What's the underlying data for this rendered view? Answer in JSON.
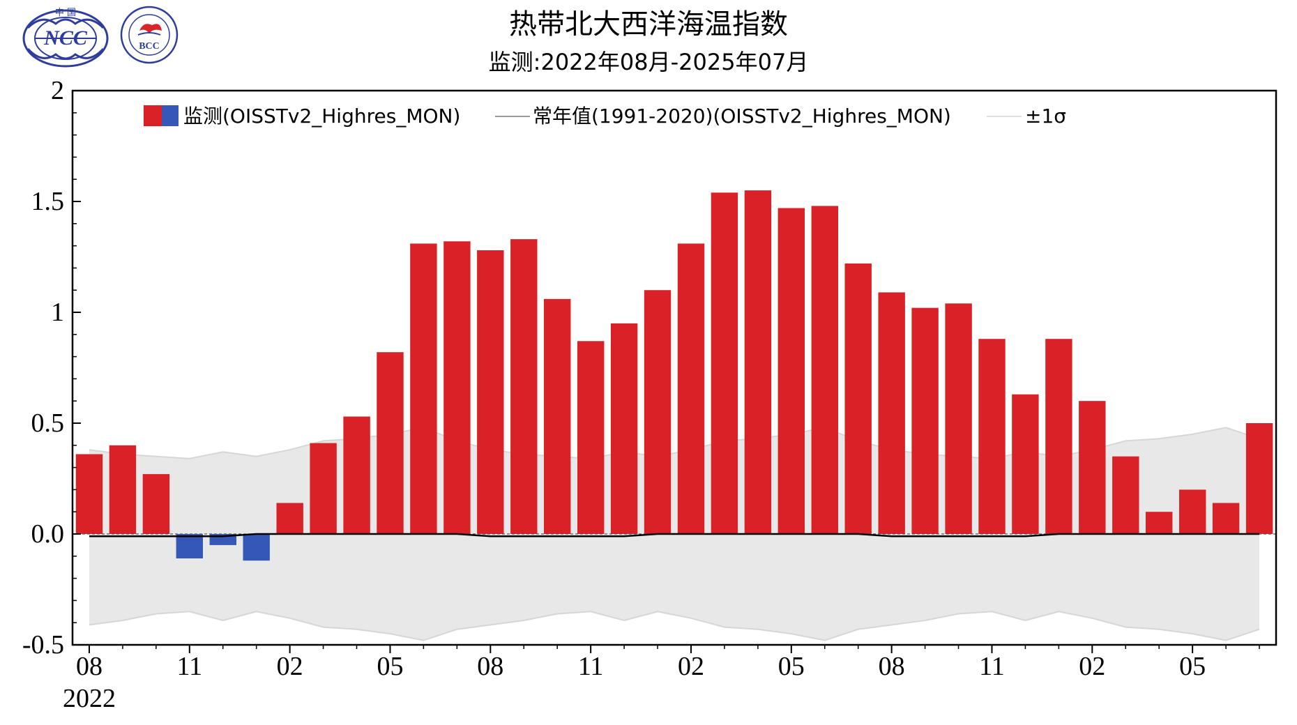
{
  "header": {
    "title": "热带北大西洋海温指数",
    "subtitle": "监测:2022年08月-2025年07月",
    "logo_left_text": "NCC",
    "logo_left_top_text": "中 国",
    "logo_right_text": "BCC",
    "logo_right_ring_text": "BEIJING CLIMATE CENTER"
  },
  "legend": {
    "position": "top",
    "entries": [
      {
        "label": "监测(OISSTv2_Highres_MON)",
        "colors": [
          "#DA2128",
          "#3557B8"
        ]
      },
      {
        "label": "常年值(1991-2020)(OISSTv2_Highres_MON)",
        "color": "#999999"
      },
      {
        "label": "±1σ",
        "color": "#E0E0E0"
      }
    ]
  },
  "colors": {
    "positive": "#DA2128",
    "negative": "#3557B8",
    "band_fill": "#E8E8E8",
    "band_edge": "#D6D6D6",
    "climatology_line": "#000000"
  },
  "chart_data": {
    "type": "bar",
    "title": "热带北大西洋海温指数",
    "subtitle": "监测:2022年08月-2025年07月",
    "xlabel": "",
    "ylabel": "",
    "ylim": [
      -0.5,
      2
    ],
    "yticks": [
      "2",
      "1.5",
      "1",
      "0.5",
      "0.0",
      "-0.5"
    ],
    "ytick_values": [
      2,
      1.5,
      1,
      0.5,
      0,
      -0.5
    ],
    "xtick_labels": [
      "08",
      "11",
      "02",
      "05",
      "08",
      "11",
      "02",
      "05",
      "08",
      "11",
      "02",
      "05"
    ],
    "xtick_indices": [
      0,
      3,
      6,
      9,
      12,
      15,
      18,
      21,
      24,
      27,
      30,
      33
    ],
    "year_label": "2022",
    "months": [
      "2022-08",
      "2022-09",
      "2022-10",
      "2022-11",
      "2022-12",
      "2023-01",
      "2023-02",
      "2023-03",
      "2023-04",
      "2023-05",
      "2023-06",
      "2023-07",
      "2023-08",
      "2023-09",
      "2023-10",
      "2023-11",
      "2023-12",
      "2024-01",
      "2024-02",
      "2024-03",
      "2024-04",
      "2024-05",
      "2024-06",
      "2024-07",
      "2024-08",
      "2024-09",
      "2024-10",
      "2024-11",
      "2024-12",
      "2025-01",
      "2025-02",
      "2025-03",
      "2025-04",
      "2025-05",
      "2025-06",
      "2025-07"
    ],
    "values": [
      0.36,
      0.4,
      0.27,
      -0.11,
      -0.05,
      -0.12,
      0.14,
      0.41,
      0.53,
      0.82,
      1.31,
      1.32,
      1.28,
      1.33,
      1.06,
      0.87,
      0.95,
      1.1,
      1.31,
      1.54,
      1.55,
      1.47,
      1.48,
      1.22,
      1.09,
      1.02,
      1.04,
      0.88,
      0.63,
      0.88,
      0.6,
      0.35,
      0.1,
      0.2,
      0.14,
      0.5
    ],
    "climatology": [
      -0.01,
      -0.01,
      -0.01,
      -0.01,
      -0.01,
      0.0,
      0.0,
      0.0,
      0.0,
      0.0,
      0.0,
      0.0,
      -0.01,
      -0.01,
      -0.01,
      -0.01,
      -0.01,
      0.0,
      0.0,
      0.0,
      0.0,
      0.0,
      0.0,
      0.0,
      -0.01,
      -0.01,
      -0.01,
      -0.01,
      -0.01,
      0.0,
      0.0,
      0.0,
      0.0,
      0.0,
      0.0,
      0.0
    ],
    "sigma_upper": [
      0.38,
      0.36,
      0.35,
      0.34,
      0.37,
      0.35,
      0.38,
      0.42,
      0.43,
      0.45,
      0.48,
      0.42,
      0.38,
      0.36,
      0.35,
      0.34,
      0.37,
      0.35,
      0.38,
      0.42,
      0.43,
      0.45,
      0.48,
      0.42,
      0.38,
      0.36,
      0.35,
      0.34,
      0.37,
      0.35,
      0.38,
      0.42,
      0.43,
      0.45,
      0.48,
      0.43
    ],
    "sigma_lower": [
      -0.41,
      -0.39,
      -0.36,
      -0.35,
      -0.39,
      -0.35,
      -0.38,
      -0.42,
      -0.43,
      -0.45,
      -0.48,
      -0.43,
      -0.41,
      -0.39,
      -0.36,
      -0.35,
      -0.39,
      -0.35,
      -0.38,
      -0.42,
      -0.43,
      -0.45,
      -0.48,
      -0.43,
      -0.41,
      -0.39,
      -0.36,
      -0.35,
      -0.39,
      -0.35,
      -0.38,
      -0.42,
      -0.43,
      -0.45,
      -0.48,
      -0.43
    ],
    "grid": false,
    "zero_line": "dashed"
  }
}
